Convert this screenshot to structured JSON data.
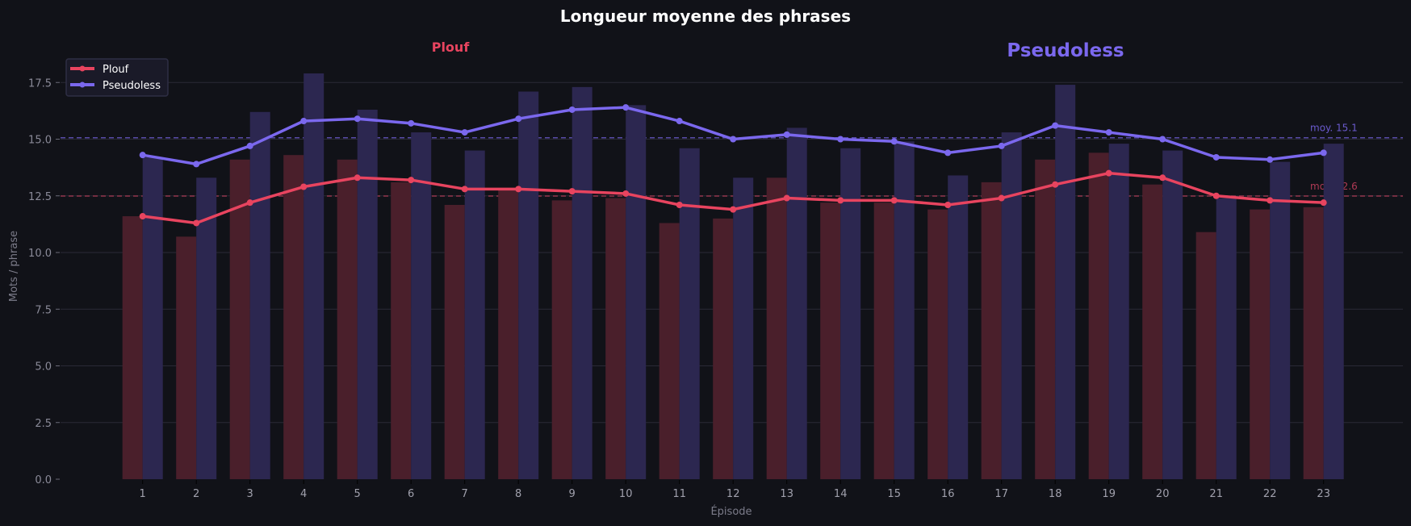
{
  "chart_data": {
    "type": "bar",
    "title": "Longueur moyenne des phrases",
    "xlabel": "Épisode",
    "ylabel": "Mots / phrase",
    "ylim": [
      0,
      18.2
    ],
    "yticks": [
      "0.0",
      "2.5",
      "5.0",
      "7.5",
      "10.0",
      "12.5",
      "15.0",
      "17.5"
    ],
    "categories": [
      "1",
      "2",
      "3",
      "4",
      "5",
      "6",
      "7",
      "8",
      "9",
      "10",
      "11",
      "12",
      "13",
      "14",
      "15",
      "16",
      "17",
      "18",
      "19",
      "20",
      "21",
      "22",
      "23"
    ],
    "grid": true,
    "legend_position": "upper left",
    "series_headers": [
      {
        "label": "Plouf",
        "color": "#e8445f"
      },
      {
        "label": "Pseudoless",
        "color": "#7b68ee"
      }
    ],
    "series": [
      {
        "name": "Plouf",
        "kind": "bar",
        "color": "#4a1f2b",
        "values": [
          11.6,
          10.7,
          14.1,
          14.3,
          14.1,
          13.1,
          12.1,
          12.8,
          12.3,
          12.4,
          11.3,
          11.5,
          13.3,
          12.2,
          12.2,
          11.9,
          13.1,
          14.1,
          14.4,
          13.0,
          10.9,
          11.9,
          12.0
        ]
      },
      {
        "name": "Pseudoless",
        "kind": "bar",
        "color": "#2c2750",
        "values": [
          14.2,
          13.3,
          16.2,
          17.9,
          16.3,
          15.3,
          14.5,
          17.1,
          17.3,
          16.5,
          14.6,
          13.3,
          15.5,
          14.6,
          14.9,
          13.4,
          15.3,
          17.4,
          14.8,
          14.5,
          12.4,
          14.0,
          14.8
        ]
      },
      {
        "name": "Plouf",
        "kind": "line",
        "color": "#e8445f",
        "values": [
          11.6,
          11.3,
          12.2,
          12.9,
          13.3,
          13.2,
          12.8,
          12.8,
          12.7,
          12.6,
          12.1,
          11.9,
          12.4,
          12.3,
          12.3,
          12.1,
          12.4,
          13.0,
          13.5,
          13.3,
          12.5,
          12.3,
          12.2
        ]
      },
      {
        "name": "Pseudoless",
        "kind": "line",
        "color": "#7b68ee",
        "values": [
          14.3,
          13.9,
          14.7,
          15.8,
          15.9,
          15.7,
          15.3,
          15.9,
          16.3,
          16.4,
          15.8,
          15.0,
          15.2,
          15.0,
          14.9,
          14.4,
          14.7,
          15.6,
          15.3,
          15.0,
          14.2,
          14.1,
          14.4
        ]
      }
    ],
    "annotations": [
      {
        "text": "moy. 15.1",
        "value": 15.1,
        "color": "#6a5acd",
        "style": "dashed"
      },
      {
        "text": "moy. 12.6",
        "value": 12.6,
        "color": "#b03a55",
        "style": "dashed"
      }
    ],
    "legend": [
      {
        "label": "Plouf",
        "color": "#e8445f"
      },
      {
        "label": "Pseudoless",
        "color": "#7b68ee"
      }
    ]
  },
  "colors": {
    "background": "#111218",
    "grid": "#2a2a36",
    "legend_bg": "#1a1a28",
    "legend_border": "#2e2e44"
  }
}
